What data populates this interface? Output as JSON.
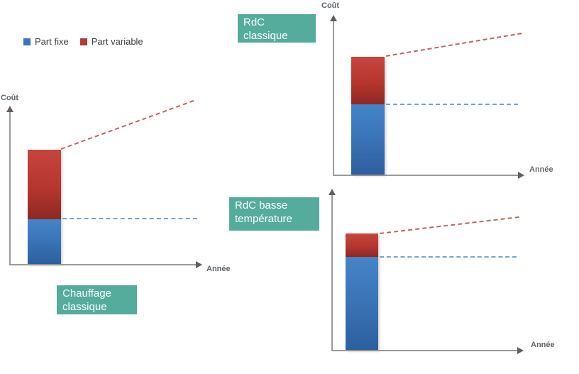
{
  "colors": {
    "background": "#ffffff",
    "teal_label_bg": "#55ac9d",
    "teal_label_text": "#ffffff",
    "part_fixe_blue": "#3c76b8",
    "part_variable_red": "#b43b37",
    "fixed_trend_dashed": "#76a3d8",
    "variable_trend_dashed": "#c9615c",
    "axis_gray": "#9b9b9b",
    "axis_label_text": "#5f666d",
    "legend_text": "#3d3d3d"
  },
  "legend": {
    "items": [
      {
        "label": "Part fixe",
        "color": "#3c76b8"
      },
      {
        "label": "Part variable",
        "color": "#b43b37"
      }
    ]
  },
  "chart_data": [
    {
      "type": "bar",
      "title": "Chauffage classique",
      "ylabel": "Coût",
      "xlabel": "Année",
      "value_scale": "fraction of y-axis height (conceptual chart, no tick values shown)",
      "stack_order": [
        "part_fixe",
        "part_variable"
      ],
      "values": {
        "part_fixe": 0.29,
        "part_variable": 0.45
      },
      "trends": {
        "part_variable": {
          "line": "red-dashed",
          "direction": "rising",
          "slope_deg": 20
        },
        "part_fixe": {
          "line": "blue-dashed",
          "direction": "flat",
          "slope_deg": 0
        }
      }
    },
    {
      "type": "bar",
      "title": "RdC classique",
      "ylabel": "Coût",
      "xlabel": "Année",
      "value_scale": "fraction of y-axis height (conceptual chart, no tick values shown)",
      "stack_order": [
        "part_fixe",
        "part_variable"
      ],
      "values": {
        "part_fixe": 0.46,
        "part_variable": 0.31
      },
      "trends": {
        "part_variable": {
          "line": "red-dashed",
          "direction": "rising",
          "slope_deg": 9.5
        },
        "part_fixe": {
          "line": "blue-dashed",
          "direction": "flat",
          "slope_deg": 0
        }
      }
    },
    {
      "type": "bar",
      "title": "RdC basse température",
      "ylabel": "",
      "xlabel": "Année",
      "value_scale": "fraction of y-axis height (conceptual chart, no tick values shown)",
      "stack_order": [
        "part_fixe",
        "part_variable"
      ],
      "values": {
        "part_fixe": 0.6,
        "part_variable": 0.15
      },
      "trends": {
        "part_variable": {
          "line": "red-dashed",
          "direction": "rising",
          "slope_deg": 6.7
        },
        "part_fixe": {
          "line": "blue-dashed",
          "direction": "flat",
          "slope_deg": 0
        }
      }
    }
  ]
}
